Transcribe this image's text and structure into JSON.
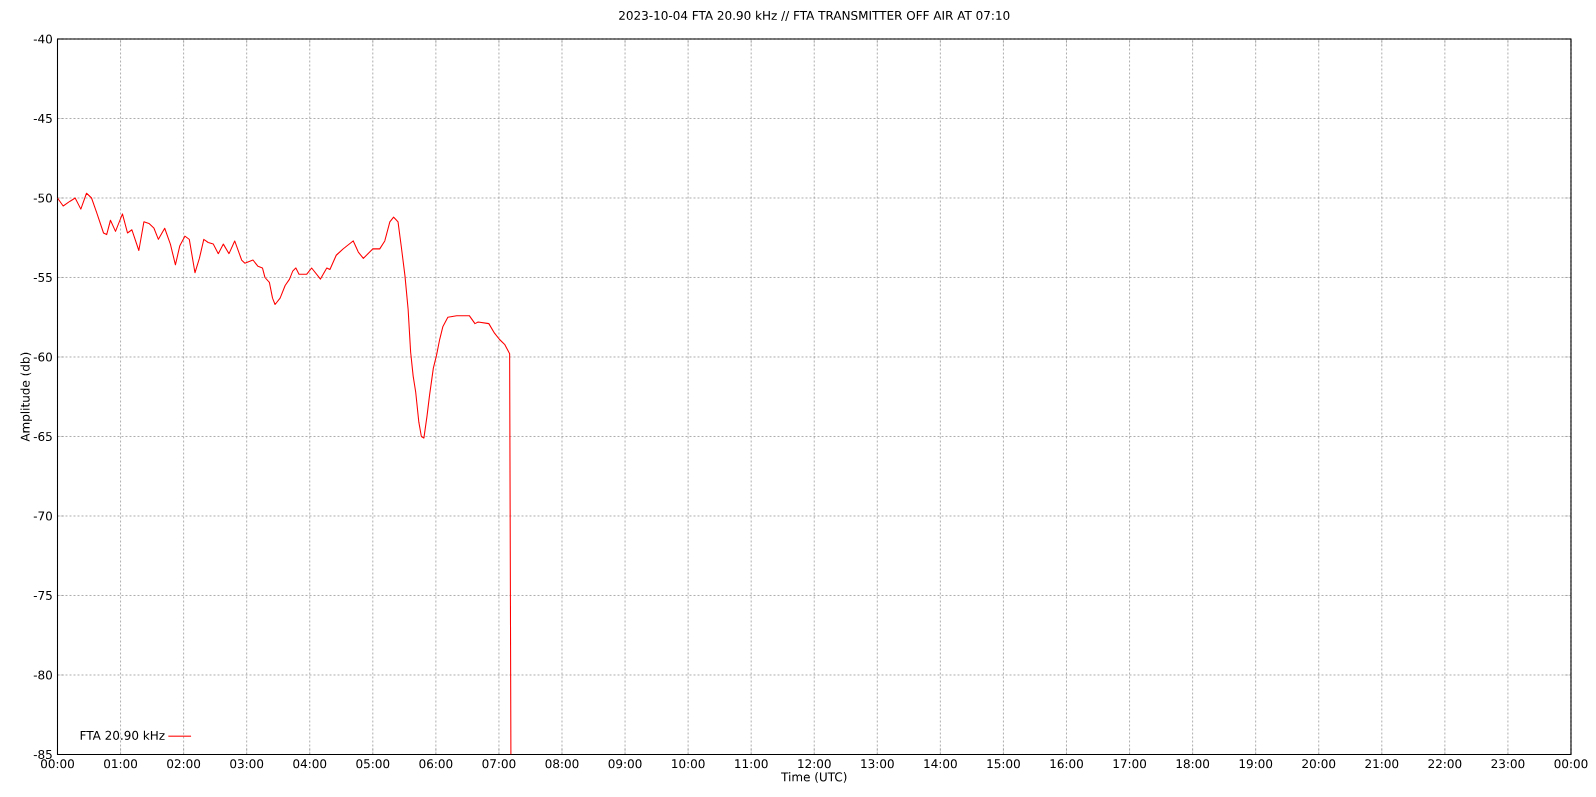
{
  "chart_data": {
    "type": "line",
    "title": "2023-10-04 FTA 20.90 kHz // FTA TRANSMITTER OFF AIR AT 07:10",
    "xlabel": "Time (UTC)",
    "ylabel": "Amplitude (db)",
    "xlim": [
      0,
      24
    ],
    "ylim": [
      -85,
      -40
    ],
    "xticks": [
      {
        "value": 0,
        "label": "00:00"
      },
      {
        "value": 1,
        "label": "01:00"
      },
      {
        "value": 2,
        "label": "02:00"
      },
      {
        "value": 3,
        "label": "03:00"
      },
      {
        "value": 4,
        "label": "04:00"
      },
      {
        "value": 5,
        "label": "05:00"
      },
      {
        "value": 6,
        "label": "06:00"
      },
      {
        "value": 7,
        "label": "07:00"
      },
      {
        "value": 8,
        "label": "08:00"
      },
      {
        "value": 9,
        "label": "09:00"
      },
      {
        "value": 10,
        "label": "10:00"
      },
      {
        "value": 11,
        "label": "11:00"
      },
      {
        "value": 12,
        "label": "12:00"
      },
      {
        "value": 13,
        "label": "13:00"
      },
      {
        "value": 14,
        "label": "14:00"
      },
      {
        "value": 15,
        "label": "15:00"
      },
      {
        "value": 16,
        "label": "16:00"
      },
      {
        "value": 17,
        "label": "17:00"
      },
      {
        "value": 18,
        "label": "18:00"
      },
      {
        "value": 19,
        "label": "19:00"
      },
      {
        "value": 20,
        "label": "20:00"
      },
      {
        "value": 21,
        "label": "21:00"
      },
      {
        "value": 22,
        "label": "22:00"
      },
      {
        "value": 23,
        "label": "23:00"
      },
      {
        "value": 24,
        "label": "00:00"
      }
    ],
    "yticks": [
      -85,
      -80,
      -75,
      -70,
      -65,
      -60,
      -55,
      -50,
      -45,
      -40
    ],
    "grid": true,
    "legend": "bottom left",
    "marker": "none",
    "line_style": "solid",
    "series": [
      {
        "name": "FTA 20.90 kHz",
        "color": "#ff0000",
        "x": [
          0,
          0.09,
          0.2,
          0.28,
          0.37,
          0.46,
          0.54,
          0.62,
          0.73,
          0.78,
          0.84,
          0.92,
          1.03,
          1.11,
          1.18,
          1.29,
          1.37,
          1.45,
          1.53,
          1.6,
          1.7,
          1.79,
          1.87,
          1.94,
          2.02,
          2.09,
          2.18,
          2.25,
          2.32,
          2.39,
          2.47,
          2.55,
          2.63,
          2.72,
          2.81,
          2.92,
          2.97,
          3.1,
          3.18,
          3.25,
          3.29,
          3.36,
          3.41,
          3.45,
          3.53,
          3.61,
          3.68,
          3.73,
          3.78,
          3.83,
          3.95,
          4.03,
          4.17,
          4.27,
          4.32,
          4.42,
          4.53,
          4.69,
          4.77,
          4.85,
          5.0,
          5.11,
          5.19,
          5.27,
          5.33,
          5.4,
          5.45,
          5.51,
          5.56,
          5.6,
          5.64,
          5.68,
          5.73,
          5.77,
          5.81,
          5.86,
          5.9,
          5.96,
          6.01,
          6.06,
          6.11,
          6.19,
          6.33,
          6.53,
          6.62,
          6.67,
          6.84,
          6.93,
          7.01,
          7.09,
          7.17,
          7.19
        ],
        "values": [
          -50.0,
          -50.5,
          -50.2,
          -50.0,
          -50.7,
          -49.7,
          -50.0,
          -50.9,
          -52.2,
          -52.3,
          -51.4,
          -52.1,
          -51.0,
          -52.2,
          -52.0,
          -53.3,
          -51.5,
          -51.6,
          -51.9,
          -52.6,
          -51.9,
          -52.9,
          -54.2,
          -53.0,
          -52.4,
          -52.6,
          -54.7,
          -53.8,
          -52.6,
          -52.8,
          -52.9,
          -53.5,
          -52.9,
          -53.5,
          -52.7,
          -53.9,
          -54.1,
          -53.9,
          -54.3,
          -54.4,
          -55.0,
          -55.3,
          -56.3,
          -56.7,
          -56.3,
          -55.5,
          -55.1,
          -54.6,
          -54.4,
          -54.8,
          -54.8,
          -54.4,
          -55.1,
          -54.4,
          -54.5,
          -53.6,
          -53.2,
          -52.7,
          -53.4,
          -53.8,
          -53.2,
          -53.2,
          -52.7,
          -51.5,
          -51.2,
          -51.5,
          -53.0,
          -54.9,
          -57.0,
          -59.7,
          -61.2,
          -62.2,
          -64.1,
          -65.0,
          -65.1,
          -63.7,
          -62.4,
          -60.7,
          -59.9,
          -58.9,
          -58.1,
          -57.5,
          -57.4,
          -57.4,
          -57.9,
          -57.8,
          -57.9,
          -58.5,
          -58.9,
          -59.2,
          -59.8,
          -85.0
        ]
      }
    ]
  }
}
